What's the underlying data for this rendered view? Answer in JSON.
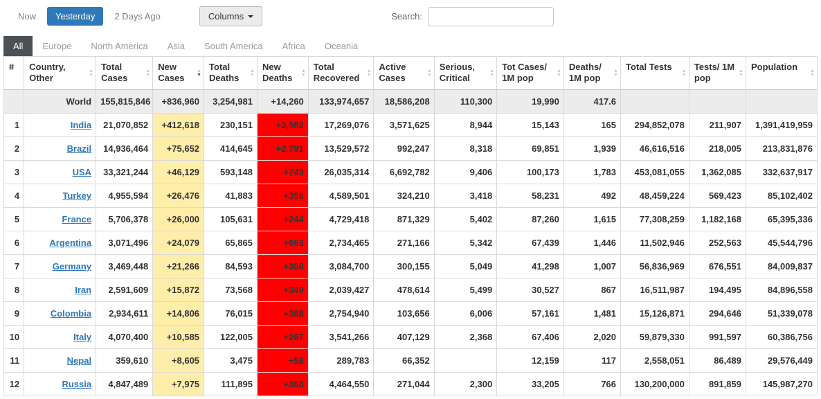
{
  "toolbar": {
    "time_tabs": [
      {
        "label": "Now",
        "active": false
      },
      {
        "label": "Yesterday",
        "active": true
      },
      {
        "label": "2 Days Ago",
        "active": false
      }
    ],
    "columns_button": "Columns",
    "search_label": "Search:",
    "search_value": "",
    "search_placeholder": ""
  },
  "continent_tabs": [
    {
      "label": "All",
      "active": true
    },
    {
      "label": "Europe",
      "active": false
    },
    {
      "label": "North America",
      "active": false
    },
    {
      "label": "Asia",
      "active": false
    },
    {
      "label": "South America",
      "active": false
    },
    {
      "label": "Africa",
      "active": false
    },
    {
      "label": "Oceania",
      "active": false
    }
  ],
  "colors": {
    "accent_blue": "#2f79b9",
    "new_cases_bg": "#ffeeaa",
    "new_deaths_bg": "#ff0000",
    "active_tab_bg": "#4c5156"
  },
  "table": {
    "columns": [
      {
        "key": "rank",
        "label": "#",
        "sortable": false,
        "sorted": ""
      },
      {
        "key": "country",
        "label": "Country, Other",
        "sortable": true,
        "sorted": ""
      },
      {
        "key": "total_cases",
        "label": "Total Cases",
        "sortable": true,
        "sorted": ""
      },
      {
        "key": "new_cases",
        "label": "New Cases",
        "sortable": true,
        "sorted": "desc"
      },
      {
        "key": "total_deaths",
        "label": "Total Deaths",
        "sortable": true,
        "sorted": ""
      },
      {
        "key": "new_deaths",
        "label": "New Deaths",
        "sortable": true,
        "sorted": ""
      },
      {
        "key": "total_recovered",
        "label": "Total Recovered",
        "sortable": true,
        "sorted": ""
      },
      {
        "key": "active_cases",
        "label": "Active Cases",
        "sortable": true,
        "sorted": ""
      },
      {
        "key": "serious_critical",
        "label": "Serious, Critical",
        "sortable": true,
        "sorted": ""
      },
      {
        "key": "cases_per_1m",
        "label": "Tot Cases/ 1M pop",
        "sortable": true,
        "sorted": ""
      },
      {
        "key": "deaths_per_1m",
        "label": "Deaths/ 1M pop",
        "sortable": true,
        "sorted": ""
      },
      {
        "key": "total_tests",
        "label": "Total Tests",
        "sortable": true,
        "sorted": ""
      },
      {
        "key": "tests_per_1m",
        "label": "Tests/ 1M pop",
        "sortable": true,
        "sorted": ""
      },
      {
        "key": "population",
        "label": "Population",
        "sortable": true,
        "sorted": ""
      }
    ],
    "world_row": {
      "rank": "",
      "country": "World",
      "total_cases": "155,815,846",
      "new_cases": "+836,960",
      "total_deaths": "3,254,981",
      "new_deaths": "+14,260",
      "total_recovered": "133,974,657",
      "active_cases": "18,586,208",
      "serious_critical": "110,300",
      "cases_per_1m": "19,990",
      "deaths_per_1m": "417.6",
      "total_tests": "",
      "tests_per_1m": "",
      "population": ""
    },
    "rows": [
      {
        "rank": "1",
        "country": "India",
        "total_cases": "21,070,852",
        "new_cases": "+412,618",
        "total_deaths": "230,151",
        "new_deaths": "+3,982",
        "total_recovered": "17,269,076",
        "active_cases": "3,571,625",
        "serious_critical": "8,944",
        "cases_per_1m": "15,143",
        "deaths_per_1m": "165",
        "total_tests": "294,852,078",
        "tests_per_1m": "211,907",
        "population": "1,391,419,959"
      },
      {
        "rank": "2",
        "country": "Brazil",
        "total_cases": "14,936,464",
        "new_cases": "+75,652",
        "total_deaths": "414,645",
        "new_deaths": "+2,791",
        "total_recovered": "13,529,572",
        "active_cases": "992,247",
        "serious_critical": "8,318",
        "cases_per_1m": "69,851",
        "deaths_per_1m": "1,939",
        "total_tests": "46,616,516",
        "tests_per_1m": "218,005",
        "population": "213,831,876"
      },
      {
        "rank": "3",
        "country": "USA",
        "total_cases": "33,321,244",
        "new_cases": "+46,129",
        "total_deaths": "593,148",
        "new_deaths": "+743",
        "total_recovered": "26,035,314",
        "active_cases": "6,692,782",
        "serious_critical": "9,406",
        "cases_per_1m": "100,173",
        "deaths_per_1m": "1,783",
        "total_tests": "453,081,055",
        "tests_per_1m": "1,362,085",
        "population": "332,637,917"
      },
      {
        "rank": "4",
        "country": "Turkey",
        "total_cases": "4,955,594",
        "new_cases": "+26,476",
        "total_deaths": "41,883",
        "new_deaths": "+356",
        "total_recovered": "4,589,501",
        "active_cases": "324,210",
        "serious_critical": "3,418",
        "cases_per_1m": "58,231",
        "deaths_per_1m": "492",
        "total_tests": "48,459,224",
        "tests_per_1m": "569,423",
        "population": "85,102,402"
      },
      {
        "rank": "5",
        "country": "France",
        "total_cases": "5,706,378",
        "new_cases": "+26,000",
        "total_deaths": "105,631",
        "new_deaths": "+244",
        "total_recovered": "4,729,418",
        "active_cases": "871,329",
        "serious_critical": "5,402",
        "cases_per_1m": "87,260",
        "deaths_per_1m": "1,615",
        "total_tests": "77,308,259",
        "tests_per_1m": "1,182,168",
        "population": "65,395,336"
      },
      {
        "rank": "6",
        "country": "Argentina",
        "total_cases": "3,071,496",
        "new_cases": "+24,079",
        "total_deaths": "65,865",
        "new_deaths": "+663",
        "total_recovered": "2,734,465",
        "active_cases": "271,166",
        "serious_critical": "5,342",
        "cases_per_1m": "67,439",
        "deaths_per_1m": "1,446",
        "total_tests": "11,502,946",
        "tests_per_1m": "252,563",
        "population": "45,544,796"
      },
      {
        "rank": "7",
        "country": "Germany",
        "total_cases": "3,469,448",
        "new_cases": "+21,266",
        "total_deaths": "84,593",
        "new_deaths": "+308",
        "total_recovered": "3,084,700",
        "active_cases": "300,155",
        "serious_critical": "5,049",
        "cases_per_1m": "41,298",
        "deaths_per_1m": "1,007",
        "total_tests": "56,836,969",
        "tests_per_1m": "676,551",
        "population": "84,009,837"
      },
      {
        "rank": "8",
        "country": "Iran",
        "total_cases": "2,591,609",
        "new_cases": "+15,872",
        "total_deaths": "73,568",
        "new_deaths": "+349",
        "total_recovered": "2,039,427",
        "active_cases": "478,614",
        "serious_critical": "5,499",
        "cases_per_1m": "30,527",
        "deaths_per_1m": "867",
        "total_tests": "16,511,987",
        "tests_per_1m": "194,495",
        "population": "84,896,558"
      },
      {
        "rank": "9",
        "country": "Colombia",
        "total_cases": "2,934,611",
        "new_cases": "+14,806",
        "total_deaths": "76,015",
        "new_deaths": "+388",
        "total_recovered": "2,754,940",
        "active_cases": "103,656",
        "serious_critical": "6,006",
        "cases_per_1m": "57,161",
        "deaths_per_1m": "1,481",
        "total_tests": "15,126,871",
        "tests_per_1m": "294,646",
        "population": "51,339,078"
      },
      {
        "rank": "10",
        "country": "Italy",
        "total_cases": "4,070,400",
        "new_cases": "+10,585",
        "total_deaths": "122,005",
        "new_deaths": "+267",
        "total_recovered": "3,541,266",
        "active_cases": "407,129",
        "serious_critical": "2,368",
        "cases_per_1m": "67,406",
        "deaths_per_1m": "2,020",
        "total_tests": "59,879,330",
        "tests_per_1m": "991,597",
        "population": "60,386,756"
      },
      {
        "rank": "11",
        "country": "Nepal",
        "total_cases": "359,610",
        "new_cases": "+8,605",
        "total_deaths": "3,475",
        "new_deaths": "+58",
        "total_recovered": "289,783",
        "active_cases": "66,352",
        "serious_critical": "",
        "cases_per_1m": "12,159",
        "deaths_per_1m": "117",
        "total_tests": "2,558,051",
        "tests_per_1m": "86,489",
        "population": "29,576,449"
      },
      {
        "rank": "12",
        "country": "Russia",
        "total_cases": "4,847,489",
        "new_cases": "+7,975",
        "total_deaths": "111,895",
        "new_deaths": "+360",
        "total_recovered": "4,464,550",
        "active_cases": "271,044",
        "serious_critical": "2,300",
        "cases_per_1m": "33,205",
        "deaths_per_1m": "766",
        "total_tests": "130,200,000",
        "tests_per_1m": "891,859",
        "population": "145,987,270"
      }
    ]
  }
}
